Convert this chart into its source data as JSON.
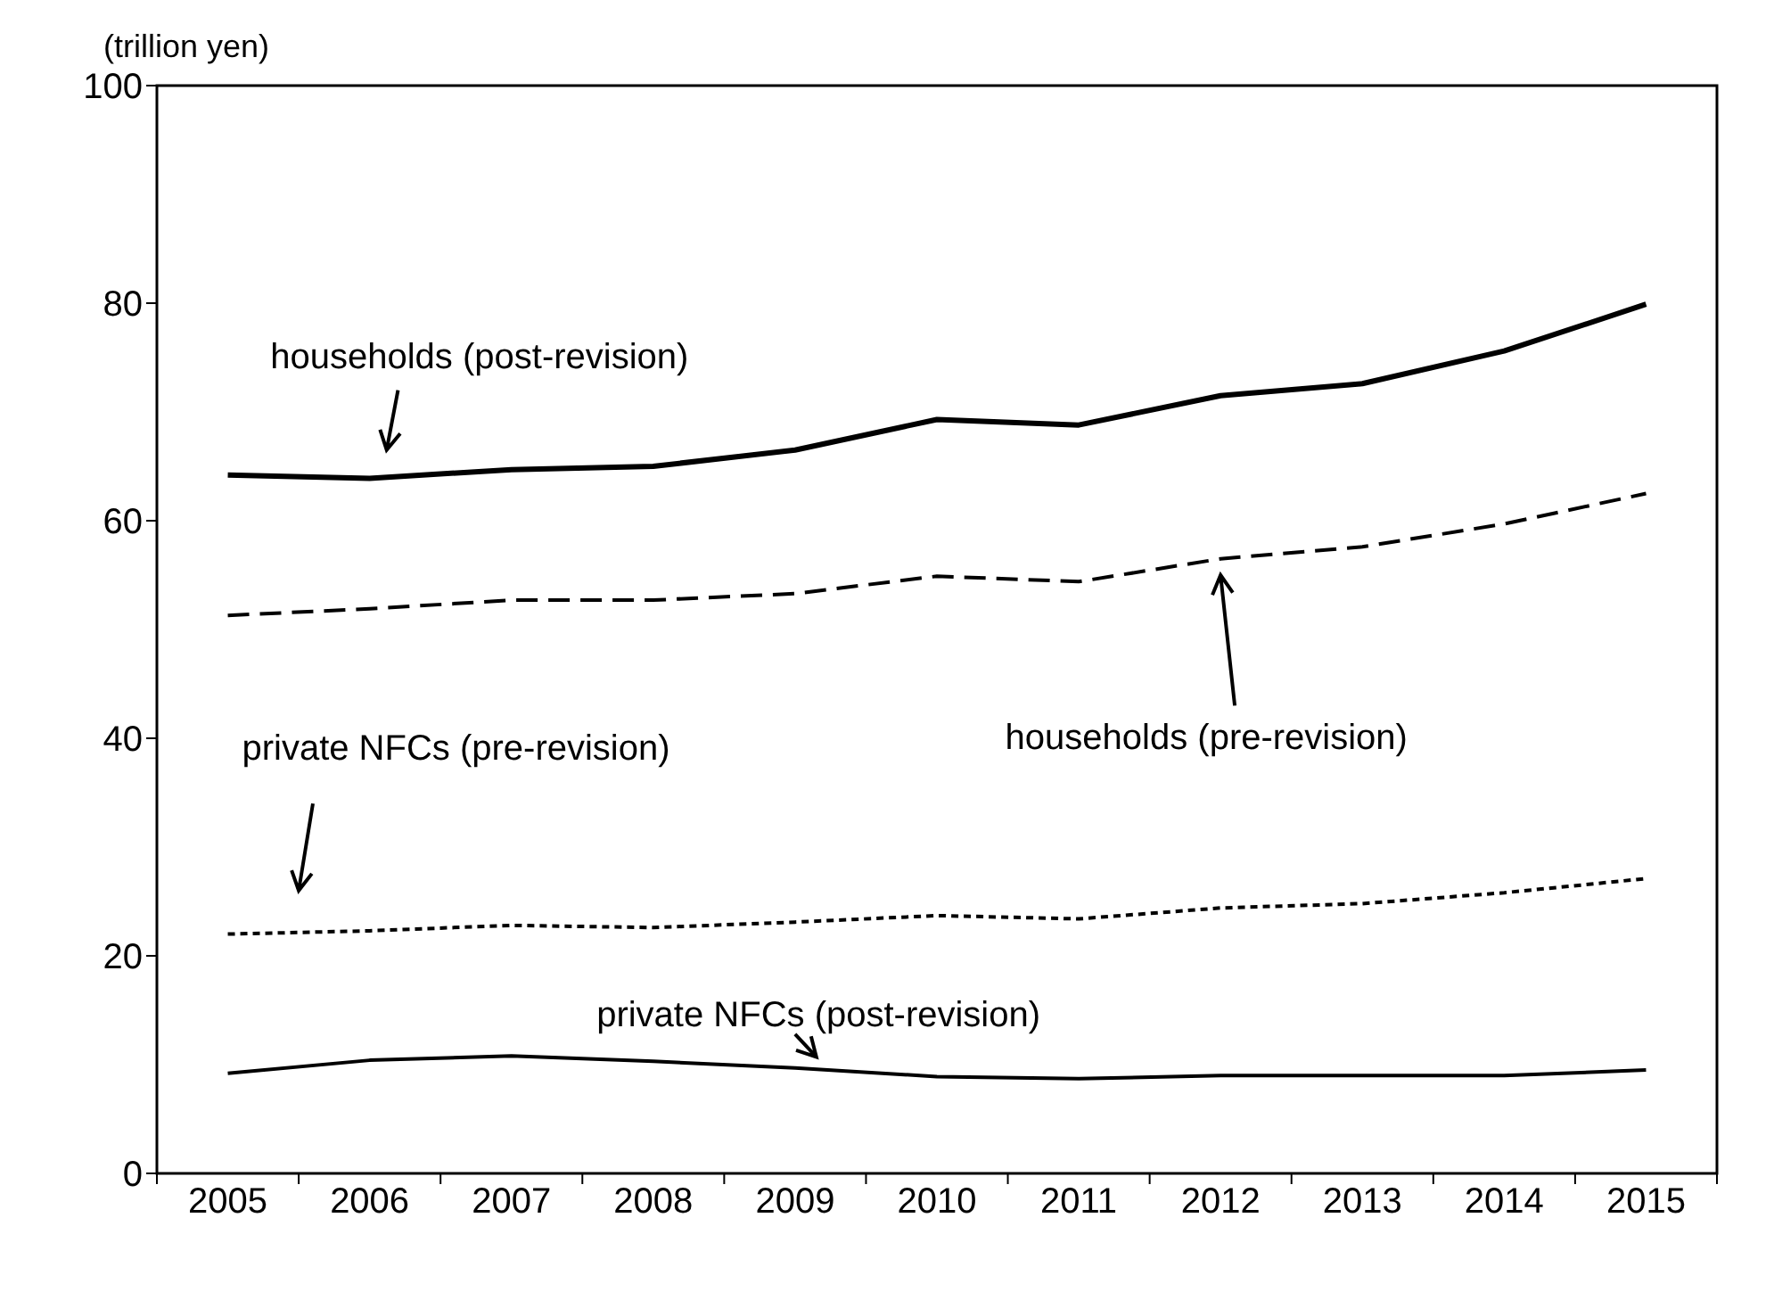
{
  "chart_data": {
    "type": "line",
    "ylabel": "(trillion yen)",
    "categories": [
      "2005",
      "2006",
      "2007",
      "2008",
      "2009",
      "2010",
      "2011",
      "2012",
      "2013",
      "2014",
      "2015"
    ],
    "ylim": [
      0,
      100
    ],
    "yticks": [
      0,
      20,
      40,
      60,
      80,
      100
    ],
    "grid": false,
    "legend": false,
    "marker": "none",
    "series": [
      {
        "name": "households (post-revision)",
        "color": "#000000",
        "line_style": "solid",
        "values": [
          64.2,
          63.9,
          64.7,
          65,
          66.5,
          69.3,
          68.8,
          71.5,
          72.6,
          75.6,
          79.9
        ]
      },
      {
        "name": "households (pre-revision)",
        "color": "#000000",
        "line_style": "dashed",
        "values": [
          51.3,
          51.9,
          52.7,
          52.7,
          53.3,
          54.9,
          54.4,
          56.5,
          57.6,
          59.7,
          62.5
        ]
      },
      {
        "name": "private NFCs (pre-revision)",
        "color": "#000000",
        "line_style": "dotted",
        "values": [
          22,
          22.3,
          22.8,
          22.6,
          23.1,
          23.7,
          23.4,
          24.4,
          24.8,
          25.8,
          27.1
        ]
      },
      {
        "name": "private NFCs (post-revision)",
        "color": "#000000",
        "line_style": "solid",
        "values": [
          9.2,
          10.4,
          10.8,
          10.3,
          9.7,
          8.9,
          8.7,
          9.0,
          9.0,
          9.0,
          9.5
        ]
      }
    ]
  }
}
